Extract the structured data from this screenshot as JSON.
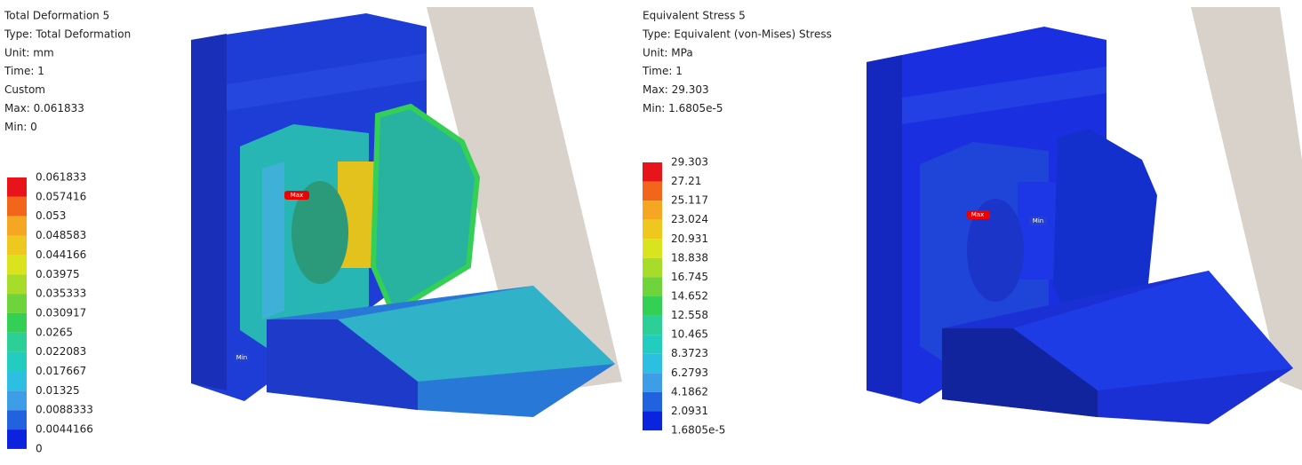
{
  "panels": [
    {
      "header": [
        "Total Deformation 5",
        "Type: Total Deformation",
        "Unit: mm",
        "Time: 1",
        "Custom",
        "Max: 0.061833",
        "Min: 0"
      ],
      "legend": {
        "labels": [
          "0.061833",
          "0.057416",
          "0.053",
          "0.048583",
          "0.044166",
          "0.03975",
          "0.035333",
          "0.030917",
          "0.0265",
          "0.022083",
          "0.017667",
          "0.01325",
          "0.0088333",
          "0.0044166",
          "0"
        ],
        "colors": [
          "#e8141b",
          "#f2651b",
          "#f5a623",
          "#efc81f",
          "#d9e41e",
          "#a8dc2b",
          "#6fd43c",
          "#34cf55",
          "#2ccf95",
          "#22cdc0",
          "#2cbfe2",
          "#3d9de6",
          "#2163df",
          "#0b22df"
        ]
      },
      "markers": [
        "Max",
        "Min"
      ]
    },
    {
      "header": [
        "Equivalent Stress 5",
        "Type: Equivalent (von-Mises) Stress",
        "Unit: MPa",
        "Time: 1",
        "Max: 29.303",
        "Min: 1.6805e-5"
      ],
      "legend": {
        "labels": [
          "29.303",
          "27.21",
          "25.117",
          "23.024",
          "20.931",
          "18.838",
          "16.745",
          "14.652",
          "12.558",
          "10.465",
          "8.3723",
          "6.2793",
          "4.1862",
          "2.0931",
          "1.6805e-5"
        ],
        "colors": [
          "#e8141b",
          "#f2651b",
          "#f5a623",
          "#efc81f",
          "#d9e41e",
          "#a8dc2b",
          "#6fd43c",
          "#34cf55",
          "#2ccf95",
          "#22cdc0",
          "#2cbfe2",
          "#3d9de6",
          "#2163df",
          "#0b22df"
        ]
      },
      "markers": [
        "Max",
        "Min"
      ]
    }
  ]
}
